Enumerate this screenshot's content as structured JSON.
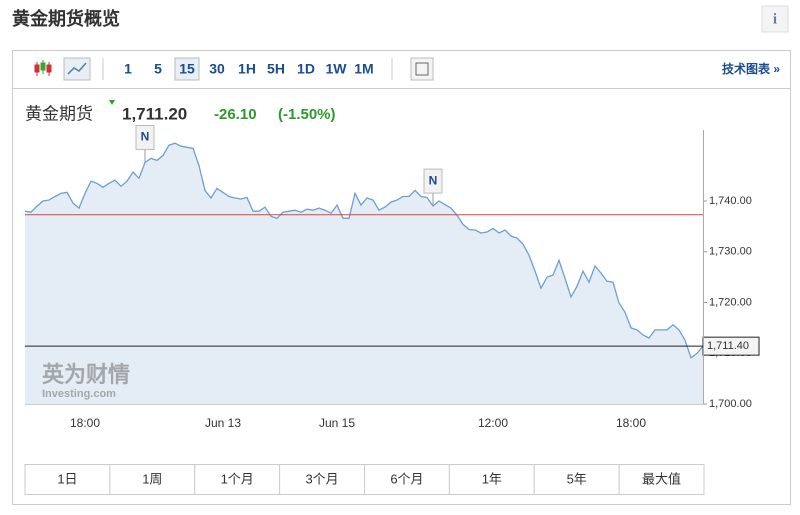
{
  "header": {
    "title": "黄金期货概览",
    "info": "i"
  },
  "toolbar": {
    "intervals": [
      "1",
      "5",
      "15",
      "30",
      "1H",
      "5H",
      "1D",
      "1W",
      "1M"
    ],
    "active": 2,
    "link": "技术图表 »"
  },
  "quote": {
    "name": "黄金期货",
    "price": "1,711.20",
    "change": "-26.10",
    "percent": "(-1.50%)"
  },
  "chart_data": {
    "type": "line",
    "color": "#6b9fd2",
    "fill": "#e4edf5",
    "categories": [
      null,
      null,
      null,
      null,
      null,
      null,
      null,
      null,
      null,
      null,
      "18:00",
      null,
      null,
      null,
      null,
      null,
      null,
      null,
      null,
      null,
      null,
      null,
      null,
      null,
      null,
      null,
      null,
      null,
      null,
      null,
      null,
      null,
      null,
      "Jun 13",
      null,
      null,
      null,
      null,
      null,
      null,
      null,
      null,
      null,
      null,
      null,
      null,
      null,
      null,
      null,
      null,
      null,
      null,
      "Jun 15",
      null,
      null,
      null,
      null,
      null,
      null,
      null,
      null,
      null,
      null,
      null,
      null,
      null,
      null,
      null,
      null,
      null,
      null,
      null,
      null,
      null,
      null,
      null,
      null,
      null,
      "12:00",
      null,
      null,
      null,
      null,
      null,
      null,
      null,
      null,
      null,
      null,
      null,
      null,
      null,
      null,
      null,
      null,
      null,
      null,
      null,
      null,
      null,
      null,
      "18:00",
      null,
      null,
      null,
      null,
      null,
      null,
      null,
      null,
      null,
      null,
      null,
      null
    ],
    "values": [
      1738.0,
      1737.8,
      1739.0,
      1740.0,
      1740.2,
      1740.9,
      1741.5,
      1741.7,
      1739.6,
      1738.6,
      1741.5,
      1743.9,
      1743.5,
      1742.7,
      1743.5,
      1744.1,
      1742.9,
      1743.9,
      1745.7,
      1744.5,
      1747.6,
      1748.4,
      1748.0,
      1749.0,
      1751.0,
      1751.4,
      1750.8,
      1750.6,
      1750.4,
      1747.0,
      1742.1,
      1740.6,
      1742.5,
      1741.7,
      1740.9,
      1740.6,
      1740.4,
      1740.7,
      1738.0,
      1738.0,
      1738.8,
      1737.0,
      1736.6,
      1737.8,
      1738.0,
      1738.2,
      1737.8,
      1738.4,
      1738.2,
      1738.6,
      1738.2,
      1737.6,
      1739.2,
      1736.6,
      1736.6,
      1741.5,
      1739.2,
      1740.6,
      1740.2,
      1738.2,
      1738.8,
      1739.8,
      1740.2,
      1740.9,
      1740.9,
      1742.1,
      1740.9,
      1740.7,
      1739.0,
      1740.0,
      1739.3,
      1738.6,
      1737.2,
      1735.4,
      1734.4,
      1734.3,
      1733.7,
      1733.9,
      1734.6,
      1733.7,
      1734.3,
      1733.1,
      1732.7,
      1731.5,
      1729.3,
      1726.2,
      1722.8,
      1725.0,
      1725.4,
      1728.3,
      1724.8,
      1721.1,
      1723.2,
      1726.2,
      1724.0,
      1727.2,
      1725.8,
      1724.2,
      1724.0,
      1719.9,
      1718.1,
      1715.0,
      1714.6,
      1713.6,
      1713.0,
      1714.6,
      1714.6,
      1714.6,
      1715.6,
      1714.6,
      1712.6,
      1709.1,
      1710.0,
      1711.4
    ],
    "ylim": [
      1700,
      1754
    ],
    "yticks": [
      {
        "value": 1700,
        "label": "1,700.00"
      },
      {
        "value": 1710,
        "label": "1,710.00"
      },
      {
        "value": 1720,
        "label": "1,720.00"
      },
      {
        "value": 1730,
        "label": "1,730.00"
      },
      {
        "value": 1740,
        "label": "1,740.00"
      }
    ],
    "reference": {
      "value": 1737.3,
      "color": "#e0403a"
    },
    "last": {
      "value": 1711.4,
      "label": "1,711.40",
      "color": "#222"
    },
    "annotations": [
      {
        "label": "N",
        "index": 20
      },
      {
        "label": "N",
        "index": 68
      }
    ],
    "watermark": [
      "英为财情",
      "Investing.com"
    ]
  },
  "ranges": [
    "1日",
    "1周",
    "1个月",
    "3个月",
    "6个月",
    "1年",
    "5年",
    "最大值"
  ]
}
